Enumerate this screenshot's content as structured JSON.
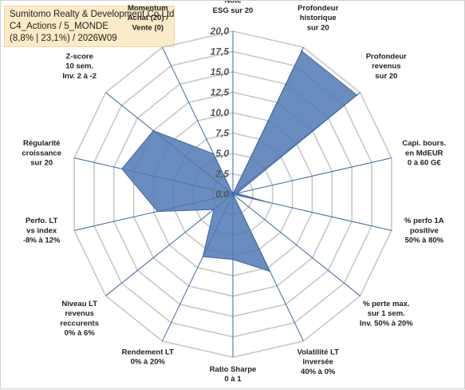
{
  "title_lines": [
    "Sumitomo Realty & Development Co Ltd",
    "C4_Actions / 5_MONDE",
    "(8,8% | 23,1%) / 2026W09"
  ],
  "colors": {
    "fill": "#4f79b3",
    "stroke": "#3e67a8",
    "grid": "#c8c8c8",
    "spoke": "#3e67a8",
    "title_bg": "#fdebc8"
  },
  "chart_data": {
    "type": "radar",
    "rmax": 20,
    "ticks": [
      0,
      2.5,
      5,
      7.5,
      10,
      12.5,
      15,
      17.5,
      20
    ],
    "tick_labels": [
      "0,0",
      "2,5",
      "5,0",
      "7,5",
      "10,0",
      "12,5",
      "15,0",
      "17,5",
      "20,0"
    ],
    "legend": "none",
    "categories": [
      {
        "label": [
          "Note",
          "ESG sur 20"
        ],
        "value": 0
      },
      {
        "label": [
          "Profondeur",
          "historique",
          "sur 20"
        ],
        "value": 19.5
      },
      {
        "label": [
          "Profondeur",
          "revenus",
          "sur 20"
        ],
        "value": 19.5
      },
      {
        "label": [
          "Capi. bours.",
          "en MdEUR",
          "0 à 60 G€"
        ],
        "value": 0.5
      },
      {
        "label": [
          "% perfo 1A",
          "positive",
          "50% à 80%"
        ],
        "value": 4.5
      },
      {
        "label": [
          "% perte max.",
          "sur 1 sem.",
          "Inv. 50% à 20%"
        ],
        "value": 0
      },
      {
        "label": [
          "Volatilité LT",
          "inversée",
          "40% à 0%"
        ],
        "value": 10.5
      },
      {
        "label": [
          "Ratio Sharpe",
          "0 à 1"
        ],
        "value": 8
      },
      {
        "label": [
          "Rendement LT",
          "0% à 20%"
        ],
        "value": 8.5
      },
      {
        "label": [
          "Niveau LT",
          "revenus",
          "reccurents",
          "0% à 6%"
        ],
        "value": 3
      },
      {
        "label": [
          "Perfo. LT",
          "vs index",
          "-8% à 12%"
        ],
        "value": 9.5
      },
      {
        "label": [
          "Régularité",
          "croissance",
          "sur 20"
        ],
        "value": 14
      },
      {
        "label": [
          "Z-score",
          "10 sem.",
          "Inv. 2 à -2"
        ],
        "value": 12.5
      },
      {
        "label": [
          "Momentum",
          "Achat (20) /",
          "Vente (0)"
        ],
        "value": 5.5
      }
    ]
  }
}
